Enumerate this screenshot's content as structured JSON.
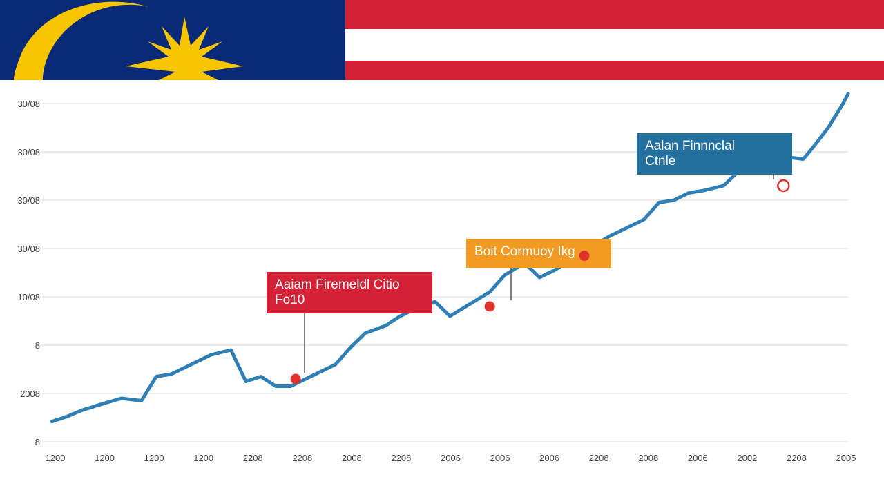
{
  "colors": {
    "flag_blue": "#0a2a78",
    "flag_red": "#d32235",
    "flag_yellow": "#f7c600",
    "line": "#2f7fb5",
    "grid": "#d8d8d8",
    "marker": "#e0322b"
  },
  "banner": {
    "description_icon": "malaysia-flag-icon"
  },
  "chart_data": {
    "type": "line",
    "title": "",
    "xlabel": "",
    "ylabel": "",
    "grid": true,
    "y_tick_labels": [
      "8",
      "2008",
      "8",
      "10/08",
      "30/08",
      "30/08",
      "30/08",
      "30/08"
    ],
    "x_tick_labels": [
      "1200",
      "1200",
      "1200",
      "1200",
      "2208",
      "2208",
      "2008",
      "2208",
      "2006",
      "2006",
      "2006",
      "2208",
      "2008",
      "2006",
      "2002",
      "2208",
      "2005"
    ],
    "ylim": [
      0,
      7
    ],
    "series": [
      {
        "x": [
          0,
          0.3,
          0.6,
          1.0,
          1.4,
          1.8,
          2.1,
          2.4,
          2.8,
          3.2,
          3.6,
          3.9,
          4.2,
          4.5,
          4.8,
          5.1,
          5.4,
          5.7,
          6.0,
          6.3,
          6.7,
          7.0,
          7.3,
          7.7,
          8.0,
          8.4,
          8.8,
          9.1,
          9.5,
          9.8,
          10.1,
          10.5,
          10.8,
          11.2,
          11.6,
          11.9,
          12.2,
          12.5,
          12.8,
          13.1,
          13.5,
          13.8,
          14.1,
          14.4,
          14.7,
          15.1,
          15.3,
          15.6,
          15.9,
          16.0
        ],
        "y": [
          0.42,
          0.52,
          0.65,
          0.78,
          0.9,
          0.85,
          1.35,
          1.4,
          1.6,
          1.8,
          1.9,
          1.25,
          1.35,
          1.15,
          1.15,
          1.3,
          1.45,
          1.6,
          1.95,
          2.25,
          2.4,
          2.6,
          2.75,
          2.9,
          2.6,
          2.85,
          3.1,
          3.45,
          3.7,
          3.4,
          3.55,
          3.8,
          4.0,
          4.25,
          4.45,
          4.6,
          4.95,
          5.0,
          5.15,
          5.2,
          5.3,
          5.6,
          5.7,
          5.75,
          5.9,
          5.85,
          6.1,
          6.5,
          7.0,
          7.2
        ]
      }
    ],
    "markers": [
      {
        "x": 4.9,
        "y": 1.3,
        "style": "filled",
        "callout": "callout1"
      },
      {
        "x": 8.8,
        "y": 2.8,
        "style": "filled",
        "callout": "callout2"
      },
      {
        "x": 10.7,
        "y": 3.85,
        "style": "filled",
        "callout": "callout3"
      },
      {
        "x": 14.7,
        "y": 5.3,
        "style": "hollow",
        "callout": "callout4"
      }
    ],
    "callouts": {
      "callout1": {
        "lines": [
          "Aaiam Firemeldl Citio",
          "Fo10"
        ],
        "color": "#d32235",
        "text_color": "#ffffff"
      },
      "callout2": {
        "lines": [
          "Boit Cormuoy Ikg"
        ],
        "color": "#f39a22",
        "text_color": "#ffffff"
      },
      "callout3": {
        "lines": [],
        "color": "#f39a22",
        "text_color": "#ffffff"
      },
      "callout4": {
        "lines": [
          "Aalan Finnnclal",
          "Ctnle"
        ],
        "color": "#236f9e",
        "text_color": "#ffffff"
      }
    }
  }
}
